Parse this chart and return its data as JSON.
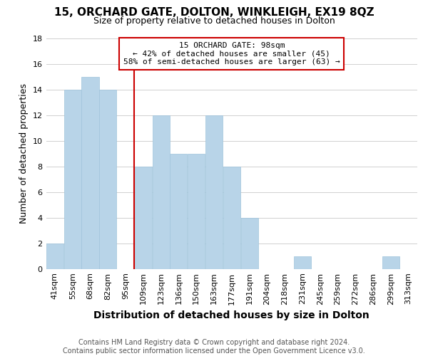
{
  "title": "15, ORCHARD GATE, DOLTON, WINKLEIGH, EX19 8QZ",
  "subtitle": "Size of property relative to detached houses in Dolton",
  "xlabel": "Distribution of detached houses by size in Dolton",
  "ylabel": "Number of detached properties",
  "footer_line1": "Contains HM Land Registry data © Crown copyright and database right 2024.",
  "footer_line2": "Contains public sector information licensed under the Open Government Licence v3.0.",
  "bin_labels": [
    "41sqm",
    "55sqm",
    "68sqm",
    "82sqm",
    "95sqm",
    "109sqm",
    "123sqm",
    "136sqm",
    "150sqm",
    "163sqm",
    "177sqm",
    "191sqm",
    "204sqm",
    "218sqm",
    "231sqm",
    "245sqm",
    "259sqm",
    "272sqm",
    "286sqm",
    "299sqm",
    "313sqm"
  ],
  "bar_values": [
    2,
    14,
    15,
    14,
    0,
    8,
    12,
    9,
    9,
    12,
    8,
    4,
    0,
    0,
    1,
    0,
    0,
    0,
    0,
    1,
    0
  ],
  "bar_color": "#b8d4e8",
  "bar_edge_color": "#a0c4dc",
  "highlight_line_color": "#cc0000",
  "annotation_title": "15 ORCHARD GATE: 98sqm",
  "annotation_line1": "← 42% of detached houses are smaller (45)",
  "annotation_line2": "58% of semi-detached houses are larger (63) →",
  "annotation_box_facecolor": "#ffffff",
  "annotation_box_edgecolor": "#cc0000",
  "ylim": [
    0,
    18
  ],
  "yticks": [
    0,
    2,
    4,
    6,
    8,
    10,
    12,
    14,
    16,
    18
  ],
  "background_color": "#ffffff",
  "grid_color": "#d0d0d0",
  "title_fontsize": 11,
  "subtitle_fontsize": 9,
  "xlabel_fontsize": 10,
  "ylabel_fontsize": 9,
  "tick_fontsize": 8,
  "footer_fontsize": 7,
  "annotation_fontsize": 8
}
